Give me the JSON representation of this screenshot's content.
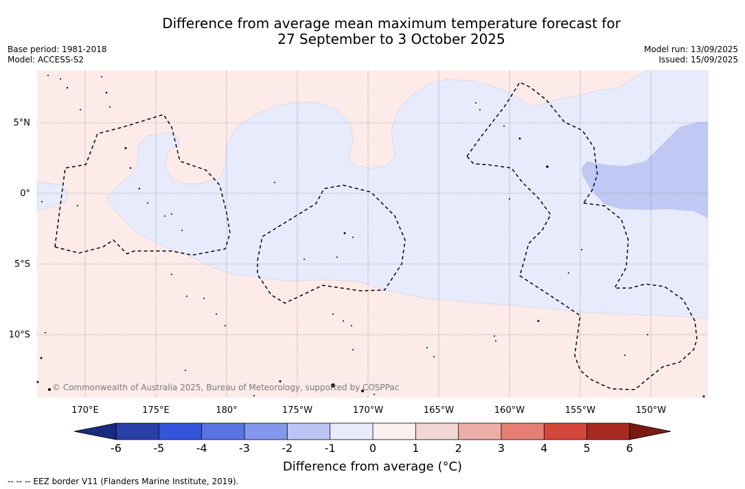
{
  "title": {
    "line1": "Difference from average mean maximum temperature forecast for",
    "line2": "27 September to 3 October 2025"
  },
  "meta": {
    "base_period": "Base period: 1981-2018",
    "model": "Model: ACCESS-S2",
    "model_run": "Model run: 13/09/2025",
    "issued": "Issued: 15/09/2025"
  },
  "map": {
    "lat_labels": [
      "5°N",
      "0°",
      "5°S",
      "10°S"
    ],
    "lon_labels": [
      "170°E",
      "175°E",
      "180°",
      "175°W",
      "170°W",
      "165°W",
      "160°W",
      "155°W",
      "150°W"
    ],
    "copyright": "© Commonwealth of Australia 2025, Bureau of Meteorology, supported by COSPPac"
  },
  "colorbar": {
    "ticks": [
      "-6",
      "-5",
      "-4",
      "-3",
      "-2",
      "-1",
      "0",
      "1",
      "2",
      "3",
      "4",
      "5",
      "6"
    ],
    "colors": [
      "#2a3fa8",
      "#3355dd",
      "#5a73e3",
      "#8398ea",
      "#bcc5f3",
      "#e8ebfb",
      "#fcf0ef",
      "#f1d6d4",
      "#ebaea8",
      "#e57f74",
      "#d4473a",
      "#a82a20"
    ],
    "under_color": "#1a2a80",
    "over_color": "#7a1a14",
    "label": "Difference from average (°C)"
  },
  "legend_footnote": "--  --  -- EEZ border V11 (Flanders Marine Institute, 2019)."
}
